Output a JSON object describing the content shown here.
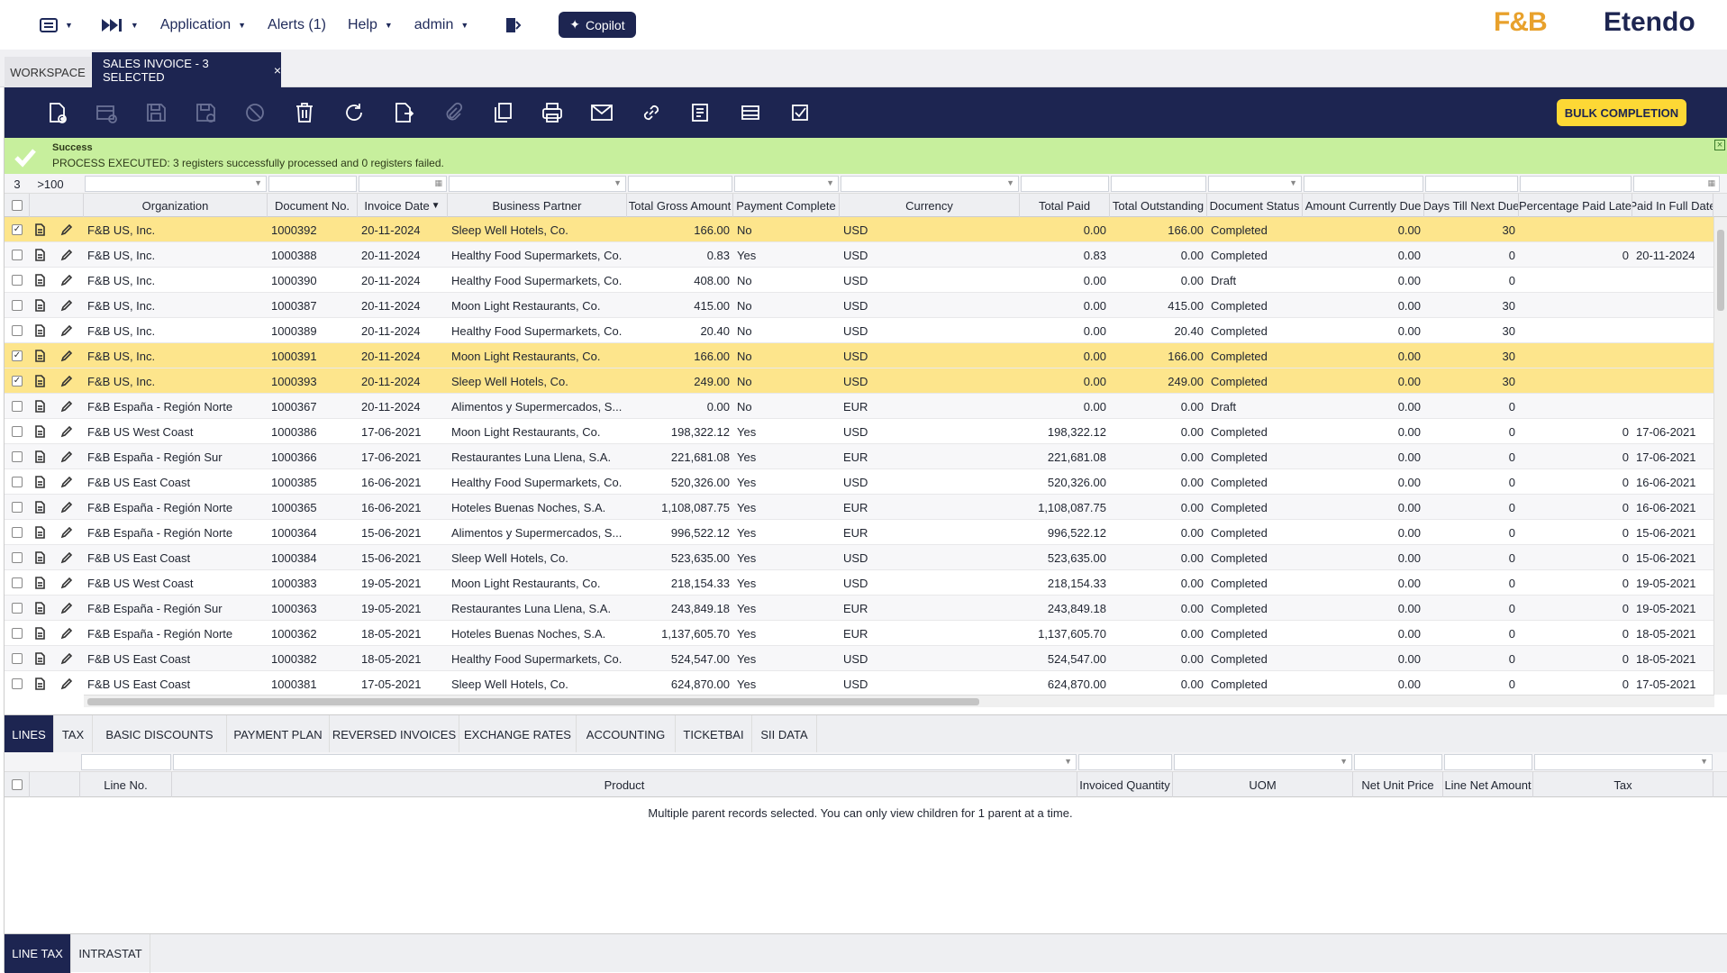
{
  "topnav": {
    "menu_icon": "grid-menu-icon",
    "skip_icon": "fast-forward-icon",
    "application": "Application",
    "alerts": "Alerts (1)",
    "help": "Help",
    "user": "admin",
    "copilot": "Copilot",
    "logo_fb": "F&B",
    "logo_etendo": "Etendo"
  },
  "tabs": {
    "workspace": "WORKSPACE",
    "active": "SALES INVOICE - 3 SELECTED",
    "close": "×"
  },
  "toolbar": {
    "bulk": "BULK COMPLETION"
  },
  "message": {
    "title": "Success",
    "text": "PROCESS EXECUTED: 3 registers successfully processed and 0 registers failed.",
    "color": "#c7ef9d"
  },
  "grid": {
    "selected_count": "3",
    "total_count": ">100",
    "columns": [
      "Organization",
      "Document No.",
      "Invoice Date",
      "Business Partner",
      "Total Gross Amount",
      "Payment Complete",
      "Currency",
      "Total Paid",
      "Total Outstanding",
      "Document Status",
      "Amount Currently Due",
      "Days Till Next Due",
      "Percentage Paid Late",
      "Paid In Full Date"
    ],
    "sort_indicator": "▼",
    "rows": [
      {
        "sel": true,
        "org": "F&B US, Inc.",
        "doc": "1000392",
        "date": "20-11-2024",
        "bp": "Sleep Well Hotels, Co.",
        "gross": "166.00",
        "pc": "No",
        "cur": "USD",
        "paid": "0.00",
        "out": "166.00",
        "status": "Completed",
        "due": "0.00",
        "days": "30",
        "late": "",
        "full": ""
      },
      {
        "sel": false,
        "org": "F&B US, Inc.",
        "doc": "1000388",
        "date": "20-11-2024",
        "bp": "Healthy Food Supermarkets, Co.",
        "gross": "0.83",
        "pc": "Yes",
        "cur": "USD",
        "paid": "0.83",
        "out": "0.00",
        "status": "Completed",
        "due": "0.00",
        "days": "0",
        "late": "0",
        "full": "20-11-2024"
      },
      {
        "sel": false,
        "org": "F&B US, Inc.",
        "doc": "1000390",
        "date": "20-11-2024",
        "bp": "Healthy Food Supermarkets, Co.",
        "gross": "408.00",
        "pc": "No",
        "cur": "USD",
        "paid": "0.00",
        "out": "0.00",
        "status": "Draft",
        "due": "0.00",
        "days": "0",
        "late": "",
        "full": ""
      },
      {
        "sel": false,
        "org": "F&B US, Inc.",
        "doc": "1000387",
        "date": "20-11-2024",
        "bp": "Moon Light Restaurants, Co.",
        "gross": "415.00",
        "pc": "No",
        "cur": "USD",
        "paid": "0.00",
        "out": "415.00",
        "status": "Completed",
        "due": "0.00",
        "days": "30",
        "late": "",
        "full": ""
      },
      {
        "sel": false,
        "org": "F&B US, Inc.",
        "doc": "1000389",
        "date": "20-11-2024",
        "bp": "Healthy Food Supermarkets, Co.",
        "gross": "20.40",
        "pc": "No",
        "cur": "USD",
        "paid": "0.00",
        "out": "20.40",
        "status": "Completed",
        "due": "0.00",
        "days": "30",
        "late": "",
        "full": ""
      },
      {
        "sel": true,
        "org": "F&B US, Inc.",
        "doc": "1000391",
        "date": "20-11-2024",
        "bp": "Moon Light Restaurants, Co.",
        "gross": "166.00",
        "pc": "No",
        "cur": "USD",
        "paid": "0.00",
        "out": "166.00",
        "status": "Completed",
        "due": "0.00",
        "days": "30",
        "late": "",
        "full": ""
      },
      {
        "sel": true,
        "org": "F&B US, Inc.",
        "doc": "1000393",
        "date": "20-11-2024",
        "bp": "Sleep Well Hotels, Co.",
        "gross": "249.00",
        "pc": "No",
        "cur": "USD",
        "paid": "0.00",
        "out": "249.00",
        "status": "Completed",
        "due": "0.00",
        "days": "30",
        "late": "",
        "full": ""
      },
      {
        "sel": false,
        "org": "F&B España - Región Norte",
        "doc": "1000367",
        "date": "20-11-2024",
        "bp": "Alimentos y Supermercados, S...",
        "gross": "0.00",
        "pc": "No",
        "cur": "EUR",
        "paid": "0.00",
        "out": "0.00",
        "status": "Draft",
        "due": "0.00",
        "days": "0",
        "late": "",
        "full": ""
      },
      {
        "sel": false,
        "org": "F&B US West Coast",
        "doc": "1000386",
        "date": "17-06-2021",
        "bp": "Moon Light Restaurants, Co.",
        "gross": "198,322.12",
        "pc": "Yes",
        "cur": "USD",
        "paid": "198,322.12",
        "out": "0.00",
        "status": "Completed",
        "due": "0.00",
        "days": "0",
        "late": "0",
        "full": "17-06-2021"
      },
      {
        "sel": false,
        "org": "F&B España - Región Sur",
        "doc": "1000366",
        "date": "17-06-2021",
        "bp": "Restaurantes Luna Llena, S.A.",
        "gross": "221,681.08",
        "pc": "Yes",
        "cur": "EUR",
        "paid": "221,681.08",
        "out": "0.00",
        "status": "Completed",
        "due": "0.00",
        "days": "0",
        "late": "0",
        "full": "17-06-2021"
      },
      {
        "sel": false,
        "org": "F&B US East Coast",
        "doc": "1000385",
        "date": "16-06-2021",
        "bp": "Healthy Food Supermarkets, Co.",
        "gross": "520,326.00",
        "pc": "Yes",
        "cur": "USD",
        "paid": "520,326.00",
        "out": "0.00",
        "status": "Completed",
        "due": "0.00",
        "days": "0",
        "late": "0",
        "full": "16-06-2021"
      },
      {
        "sel": false,
        "org": "F&B España - Región Norte",
        "doc": "1000365",
        "date": "16-06-2021",
        "bp": "Hoteles Buenas Noches, S.A.",
        "gross": "1,108,087.75",
        "pc": "Yes",
        "cur": "EUR",
        "paid": "1,108,087.75",
        "out": "0.00",
        "status": "Completed",
        "due": "0.00",
        "days": "0",
        "late": "0",
        "full": "16-06-2021"
      },
      {
        "sel": false,
        "org": "F&B España - Región Norte",
        "doc": "1000364",
        "date": "15-06-2021",
        "bp": "Alimentos y Supermercados, S...",
        "gross": "996,522.12",
        "pc": "Yes",
        "cur": "EUR",
        "paid": "996,522.12",
        "out": "0.00",
        "status": "Completed",
        "due": "0.00",
        "days": "0",
        "late": "0",
        "full": "15-06-2021"
      },
      {
        "sel": false,
        "org": "F&B US East Coast",
        "doc": "1000384",
        "date": "15-06-2021",
        "bp": "Sleep Well Hotels, Co.",
        "gross": "523,635.00",
        "pc": "Yes",
        "cur": "USD",
        "paid": "523,635.00",
        "out": "0.00",
        "status": "Completed",
        "due": "0.00",
        "days": "0",
        "late": "0",
        "full": "15-06-2021"
      },
      {
        "sel": false,
        "org": "F&B US West Coast",
        "doc": "1000383",
        "date": "19-05-2021",
        "bp": "Moon Light Restaurants, Co.",
        "gross": "218,154.33",
        "pc": "Yes",
        "cur": "USD",
        "paid": "218,154.33",
        "out": "0.00",
        "status": "Completed",
        "due": "0.00",
        "days": "0",
        "late": "0",
        "full": "19-05-2021"
      },
      {
        "sel": false,
        "org": "F&B España - Región Sur",
        "doc": "1000363",
        "date": "19-05-2021",
        "bp": "Restaurantes Luna Llena, S.A.",
        "gross": "243,849.18",
        "pc": "Yes",
        "cur": "EUR",
        "paid": "243,849.18",
        "out": "0.00",
        "status": "Completed",
        "due": "0.00",
        "days": "0",
        "late": "0",
        "full": "19-05-2021"
      },
      {
        "sel": false,
        "org": "F&B España - Región Norte",
        "doc": "1000362",
        "date": "18-05-2021",
        "bp": "Hoteles Buenas Noches, S.A.",
        "gross": "1,137,605.70",
        "pc": "Yes",
        "cur": "EUR",
        "paid": "1,137,605.70",
        "out": "0.00",
        "status": "Completed",
        "due": "0.00",
        "days": "0",
        "late": "0",
        "full": "18-05-2021"
      },
      {
        "sel": false,
        "org": "F&B US East Coast",
        "doc": "1000382",
        "date": "18-05-2021",
        "bp": "Healthy Food Supermarkets, Co.",
        "gross": "524,547.00",
        "pc": "Yes",
        "cur": "USD",
        "paid": "524,547.00",
        "out": "0.00",
        "status": "Completed",
        "due": "0.00",
        "days": "0",
        "late": "0",
        "full": "18-05-2021"
      },
      {
        "sel": false,
        "org": "F&B US East Coast",
        "doc": "1000381",
        "date": "17-05-2021",
        "bp": "Sleep Well Hotels, Co.",
        "gross": "624,870.00",
        "pc": "Yes",
        "cur": "USD",
        "paid": "624,870.00",
        "out": "0.00",
        "status": "Completed",
        "due": "0.00",
        "days": "0",
        "late": "0",
        "full": "17-05-2021"
      }
    ]
  },
  "subtabs": [
    "LINES",
    "TAX",
    "BASIC DISCOUNTS",
    "PAYMENT PLAN",
    "REVERSED INVOICES",
    "EXCHANGE RATES",
    "ACCOUNTING",
    "TICKETBAI",
    "SII DATA"
  ],
  "sub_grid": {
    "columns": [
      "Line No.",
      "Product",
      "Invoiced Quantity",
      "UOM",
      "Net Unit Price",
      "Line Net Amount",
      "Tax"
    ],
    "message": "Multiple parent records selected. You can only view children for 1 parent at a time."
  },
  "bottomtabs": [
    "LINE TAX",
    "INTRASTAT"
  ]
}
